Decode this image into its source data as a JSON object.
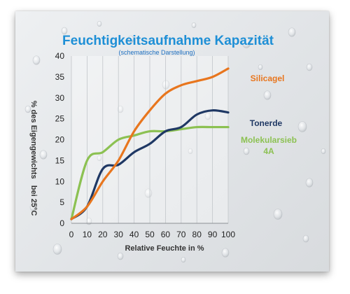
{
  "chart_data": {
    "type": "line",
    "title": "Feuchtigkeitsaufnahme Kapazität",
    "subtitle": "(schematische Darstellung)",
    "xlabel": "Relative Feuchte in %",
    "ylabel": "% des Eigengewichts   bei 25°C",
    "xlim": [
      0,
      100
    ],
    "ylim": [
      0,
      40
    ],
    "x_ticks": [
      0,
      10,
      20,
      30,
      40,
      50,
      60,
      70,
      80,
      90,
      100
    ],
    "y_ticks": [
      0,
      5,
      10,
      15,
      20,
      25,
      30,
      35,
      40
    ],
    "grid": "vertical",
    "legend": "inline-right",
    "series": [
      {
        "name": "Silicagel",
        "color": "#e8761e",
        "x": [
          0,
          10,
          20,
          30,
          40,
          50,
          60,
          70,
          80,
          90,
          100
        ],
        "y": [
          1,
          4,
          10,
          15,
          22,
          27,
          31,
          33,
          34,
          35,
          37
        ]
      },
      {
        "name": "Tonerde",
        "color": "#1f3864",
        "x": [
          0,
          10,
          20,
          30,
          40,
          50,
          60,
          70,
          80,
          90,
          100
        ],
        "y": [
          1,
          4,
          13,
          14,
          17,
          19,
          22,
          23,
          26,
          27,
          26.5
        ]
      },
      {
        "name": "Molekularsieb 4A",
        "color": "#8cc152",
        "x": [
          0,
          10,
          20,
          30,
          40,
          50,
          60,
          70,
          80,
          90,
          100
        ],
        "y": [
          1,
          15,
          17,
          20,
          21,
          22,
          22,
          22.5,
          23,
          23,
          23
        ]
      }
    ]
  }
}
